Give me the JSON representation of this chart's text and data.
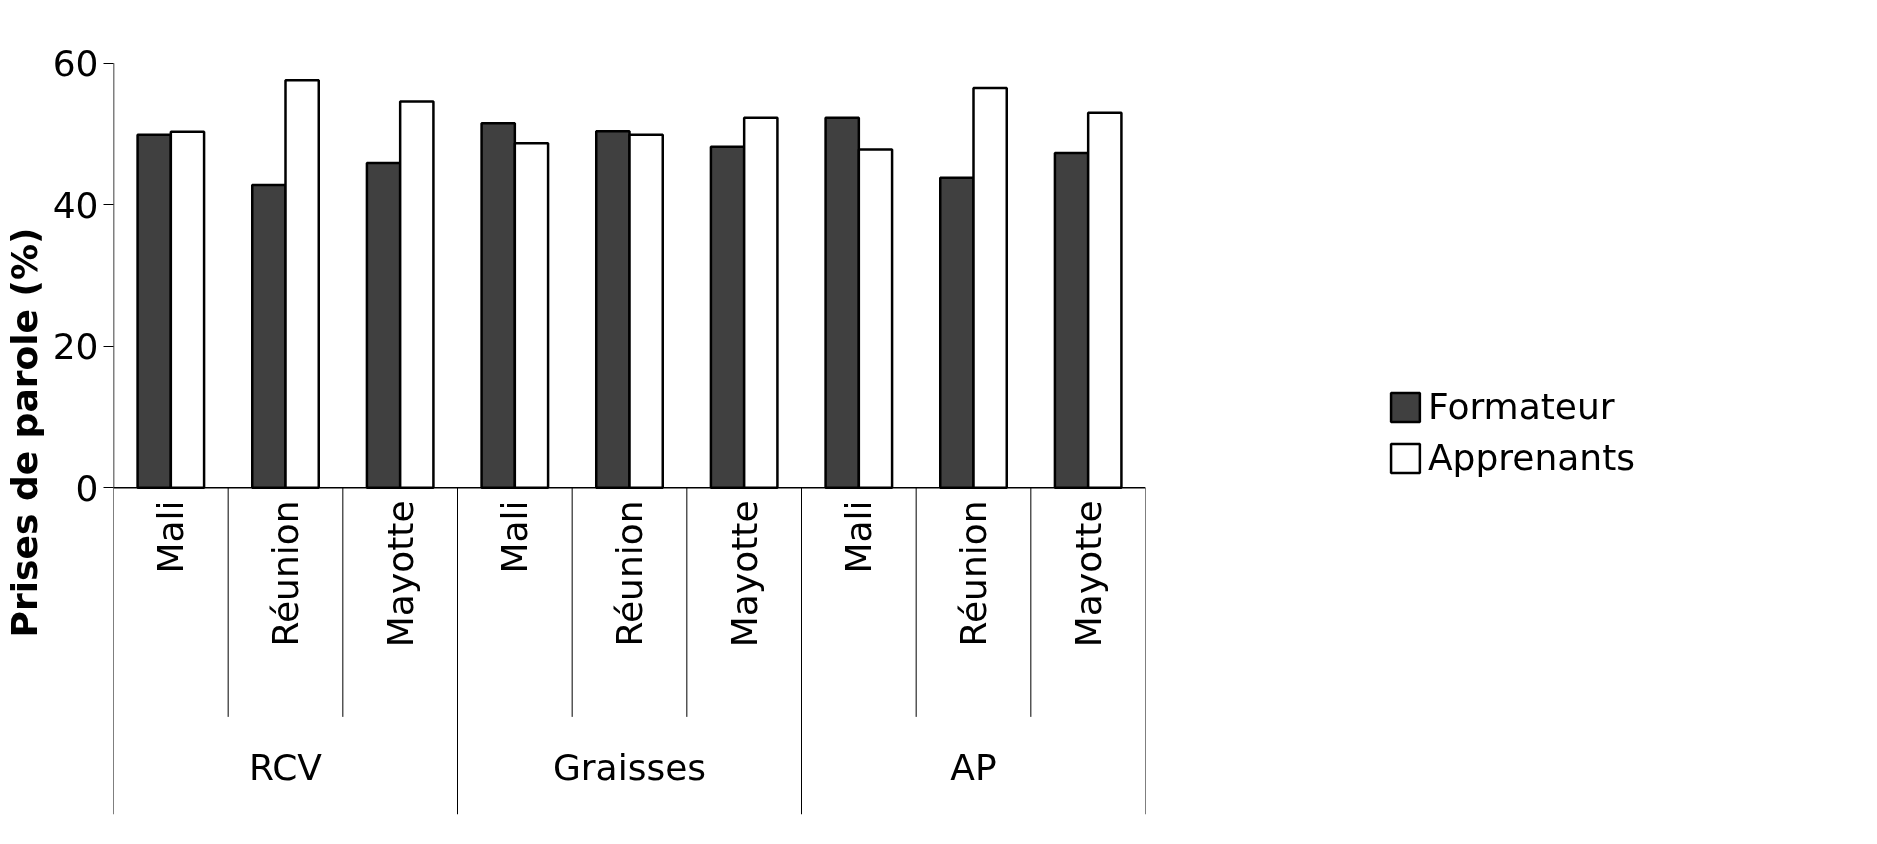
{
  "chart_data": {
    "type": "bar",
    "ylabel": "Prises de parole (%)",
    "categories": [
      "Mali",
      "Réunion",
      "Mayotte",
      "Mali",
      "Réunion",
      "Mayotte",
      "Mali",
      "Réunion",
      "Mayotte"
    ],
    "series": [
      {
        "name": "Formateur",
        "color": "#404040",
        "values": [
          49.9,
          42.8,
          45.9,
          51.5,
          50.4,
          48.2,
          52.3,
          43.8,
          47.3
        ]
      },
      {
        "name": "Apprenants",
        "color": "#ffffff",
        "values": [
          50.3,
          57.6,
          54.6,
          48.7,
          49.9,
          52.3,
          47.8,
          56.5,
          53.0
        ]
      }
    ],
    "annotations": [
      "RCV",
      "Graisses",
      "AP"
    ],
    "ylim": [
      0,
      60
    ],
    "yticks": [
      0,
      20,
      40,
      60
    ],
    "grid": false,
    "legend": "right"
  }
}
